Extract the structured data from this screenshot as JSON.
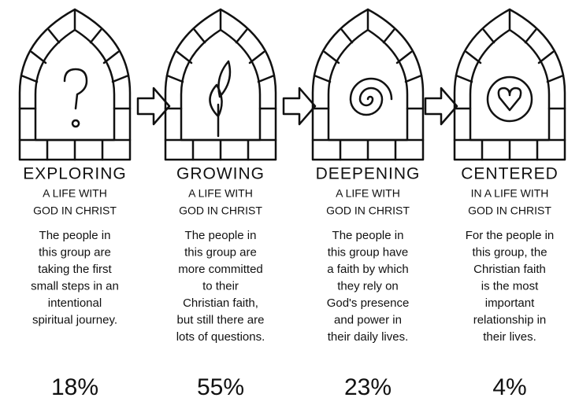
{
  "stages": [
    {
      "title": "EXPLORING",
      "subtitle": [
        "A LIFE WITH",
        "GOD IN CHRIST"
      ],
      "description": [
        "The people in",
        "this group are",
        "taking the first",
        "small steps in an",
        "intentional",
        "spiritual journey."
      ],
      "share": "18%"
    },
    {
      "title": "GROWING",
      "subtitle": [
        "A LIFE WITH",
        "GOD IN CHRIST"
      ],
      "description": [
        "The people in",
        "this group are",
        "more committed",
        "to their",
        "Christian faith,",
        "but still there are",
        "lots of questions."
      ],
      "share": "55%"
    },
    {
      "title": "DEEPENING",
      "subtitle": [
        "A LIFE WITH",
        "GOD IN CHRIST"
      ],
      "description": [
        "The people in",
        "this group have",
        "a faith by which",
        "they rely on",
        "God's presence",
        "and power in",
        "their daily lives."
      ],
      "share": "23%"
    },
    {
      "title": "CENTERED",
      "subtitle": [
        "IN A LIFE WITH",
        "GOD IN CHRIST"
      ],
      "description": [
        "For the people in",
        "this group, the",
        "Christian faith",
        "is the most",
        "important",
        "relationship in",
        "their lives."
      ],
      "share": "4%"
    }
  ]
}
